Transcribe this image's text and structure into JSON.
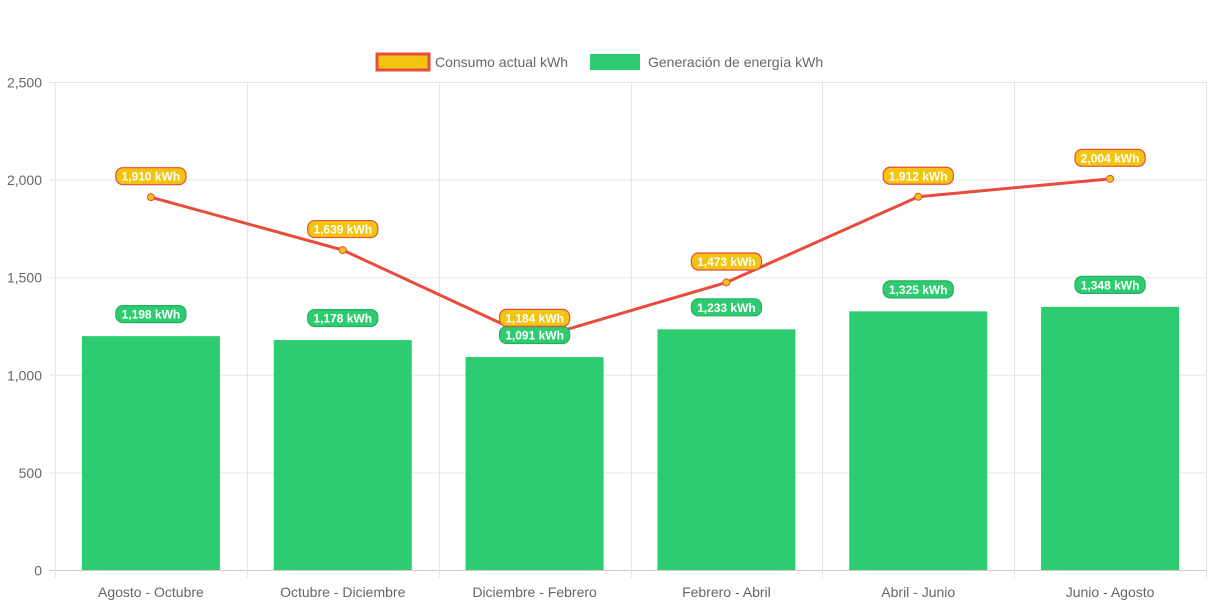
{
  "chart_data": {
    "type": "bar",
    "title": "",
    "xlabel": "",
    "ylabel": "",
    "ylim": [
      0,
      2500
    ],
    "yticks": [
      0,
      500,
      1000,
      1500,
      2000,
      2500
    ],
    "ytick_labels": [
      "0",
      "500",
      "1,000",
      "1,500",
      "2,000",
      "2,500"
    ],
    "grid": true,
    "legend_position": "top",
    "categories": [
      "Agosto - Octubre",
      "Octubre - Diciembre",
      "Diciembre - Febrero",
      "Febrero - Abril",
      "Abril - Junio",
      "Junio - Agosto"
    ],
    "series": [
      {
        "name": "Consumo actual kWh",
        "type": "line",
        "values": [
          1910,
          1639,
          1184,
          1473,
          1912,
          2004
        ],
        "labels": [
          "1,910 kWh",
          "1,639 kWh",
          "1,184 kWh",
          "1,473 kWh",
          "1,912 kWh",
          "2,004 kWh"
        ],
        "color": "#e74c3c",
        "fill": "#f1c40f"
      },
      {
        "name": "Generación de energía kWh",
        "type": "bar",
        "values": [
          1198,
          1178,
          1091,
          1233,
          1325,
          1348
        ],
        "labels": [
          "1,198 kWh",
          "1,178 kWh",
          "1,091 kWh",
          "1,233 kWh",
          "1,325 kWh",
          "1,348 kWh"
        ],
        "color": "#2ecc71",
        "border": "#27ae60"
      }
    ]
  }
}
